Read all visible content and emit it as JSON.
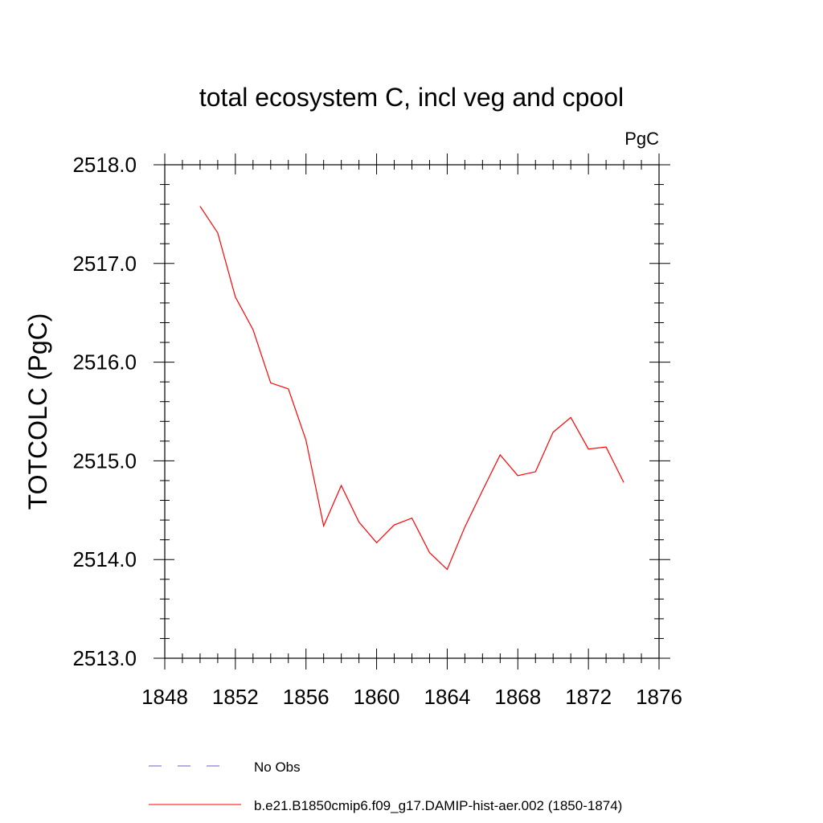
{
  "chart_data": {
    "type": "line",
    "title": "total ecosystem C, incl veg and cpool",
    "units_label": "PgC",
    "ylabel": "TOTCOLC  (PgC)",
    "xlabel": "",
    "xlim": [
      1848,
      1876
    ],
    "ylim": [
      2513.0,
      2518.0
    ],
    "x_ticks": [
      1848,
      1852,
      1856,
      1860,
      1864,
      1868,
      1872,
      1876
    ],
    "y_ticks": [
      "2513.0",
      "2514.0",
      "2515.0",
      "2516.0",
      "2517.0",
      "2518.0"
    ],
    "grid": false,
    "legend_position": "bottom",
    "series": [
      {
        "name": "b.e21.B1850cmip6.f09_g17.DAMIP-hist-aer.002 (1850-1874)",
        "color": "#ff0000",
        "style": "solid",
        "x": [
          1850,
          1851,
          1852,
          1853,
          1854,
          1855,
          1856,
          1857,
          1858,
          1859,
          1860,
          1861,
          1862,
          1863,
          1864,
          1865,
          1866,
          1867,
          1868,
          1869,
          1870,
          1871,
          1872,
          1873,
          1874
        ],
        "values": [
          2517.58,
          2517.31,
          2516.66,
          2516.33,
          2515.79,
          2515.73,
          2515.21,
          2514.34,
          2514.75,
          2514.38,
          2514.17,
          2514.35,
          2514.42,
          2514.07,
          2513.9,
          2514.33,
          2514.7,
          2515.06,
          2514.85,
          2514.89,
          2515.29,
          2515.44,
          2515.12,
          2515.14,
          2514.78
        ]
      }
    ],
    "legend": [
      {
        "label": "No Obs",
        "color": "#6b5fc7",
        "style": "dashed"
      },
      {
        "label": "b.e21.B1850cmip6.f09_g17.DAMIP-hist-aer.002 (1850-1874)",
        "color": "#ff0000",
        "style": "solid"
      }
    ]
  }
}
